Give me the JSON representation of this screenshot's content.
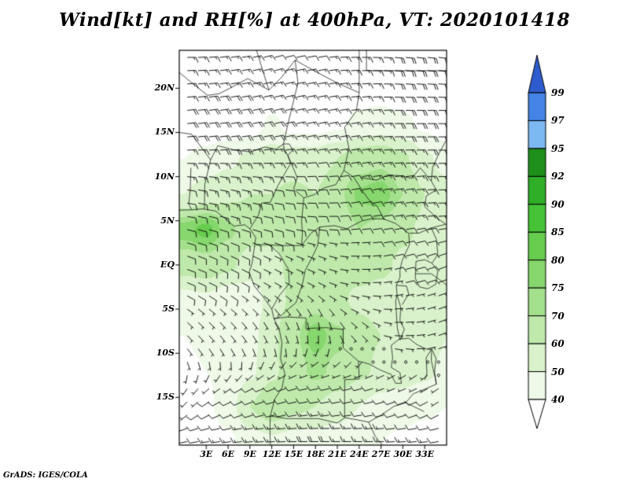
{
  "chart_data": {
    "type": "heatmap",
    "title": "Wind[kt] and RH[%] at 400hPa, VT: 2020101418",
    "attribution": "GrADS: IGES/COLA",
    "variable": "Relative humidity [%] shaded with wind barbs [kt]",
    "level": "400hPa",
    "valid_time": "2020101418",
    "legend_position": "right",
    "lon_range": [
      -0.7,
      36.0
    ],
    "lat_range": [
      -20.4,
      24.3
    ],
    "x_ticks": {
      "labels": [
        "3E",
        "6E",
        "9E",
        "12E",
        "15E",
        "18E",
        "21E",
        "24E",
        "27E",
        "30E",
        "33E"
      ],
      "lons": [
        3,
        6,
        9,
        12,
        15,
        18,
        21,
        24,
        27,
        30,
        33
      ]
    },
    "y_ticks": {
      "labels": [
        "20N",
        "15N",
        "10N",
        "5N",
        "EQ",
        "5S",
        "10S",
        "15S"
      ],
      "lats": [
        20,
        15,
        10,
        5,
        0,
        -5,
        -10,
        -15
      ]
    },
    "colorbar": {
      "levels": [
        40,
        50,
        60,
        70,
        75,
        80,
        85,
        90,
        92,
        95,
        97,
        99
      ],
      "colors": [
        "#ffffff",
        "#eef9e8",
        "#d9f2cb",
        "#bfe9ab",
        "#a3e08c",
        "#86d76d",
        "#67cd4f",
        "#46c236",
        "#2fae27",
        "#1f8f1b",
        "#7cb8f2",
        "#4584e6",
        "#2e5ccf"
      ]
    },
    "rh_field": {
      "units": "%",
      "lons": [
        0,
        3,
        6,
        9,
        12,
        15,
        18,
        21,
        24,
        27,
        30,
        33,
        36
      ],
      "lats": [
        24,
        20,
        16,
        12,
        8,
        4,
        0,
        -4,
        -8,
        -12,
        -16,
        -20
      ],
      "values": [
        [
          30,
          30,
          30,
          30,
          30,
          30,
          30,
          32,
          34,
          34,
          32,
          30,
          30
        ],
        [
          30,
          30,
          30,
          30,
          30,
          32,
          32,
          34,
          36,
          36,
          34,
          32,
          30
        ],
        [
          32,
          32,
          33,
          34,
          42,
          36,
          36,
          38,
          42,
          44,
          42,
          38,
          34
        ],
        [
          40,
          44,
          48,
          52,
          55,
          55,
          55,
          60,
          66,
          68,
          62,
          52,
          46
        ],
        [
          50,
          55,
          58,
          60,
          60,
          62,
          60,
          68,
          76,
          78,
          70,
          60,
          54
        ],
        [
          78,
          82,
          72,
          64,
          62,
          64,
          62,
          64,
          70,
          68,
          62,
          58,
          55
        ],
        [
          64,
          66,
          62,
          56,
          58,
          62,
          60,
          62,
          64,
          62,
          58,
          56,
          54
        ],
        [
          46,
          48,
          42,
          42,
          55,
          62,
          66,
          62,
          58,
          56,
          54,
          52,
          50
        ],
        [
          40,
          42,
          40,
          46,
          58,
          68,
          78,
          72,
          64,
          60,
          58,
          55,
          50
        ],
        [
          38,
          40,
          42,
          48,
          58,
          66,
          72,
          68,
          62,
          58,
          55,
          52,
          48
        ],
        [
          35,
          38,
          45,
          60,
          68,
          62,
          60,
          55,
          50,
          46,
          44,
          42,
          40
        ],
        [
          32,
          34,
          38,
          45,
          48,
          46,
          45,
          44,
          42,
          40,
          38,
          36,
          34
        ]
      ]
    },
    "wind_field": {
      "units": "kt",
      "lons": [
        0,
        6,
        12,
        18,
        24,
        30,
        36
      ],
      "lats": [
        24,
        16,
        8,
        0,
        -8,
        -16,
        -20
      ],
      "u": [
        [
          -15,
          -15,
          -12,
          -12,
          -15,
          -18,
          -18
        ],
        [
          -18,
          -20,
          -18,
          -15,
          -15,
          -18,
          -20
        ],
        [
          -12,
          -14,
          -12,
          -10,
          -12,
          -14,
          -15
        ],
        [
          -8,
          -8,
          -6,
          -5,
          -6,
          -8,
          -8
        ],
        [
          -5,
          -4,
          -2,
          0,
          -2,
          -4,
          -5
        ],
        [
          5,
          8,
          10,
          12,
          10,
          8,
          6
        ],
        [
          10,
          14,
          16,
          18,
          16,
          14,
          12
        ]
      ],
      "v": [
        [
          0,
          -2,
          -3,
          -2,
          0,
          2,
          2
        ],
        [
          -2,
          -3,
          -4,
          -3,
          -2,
          0,
          0
        ],
        [
          2,
          3,
          2,
          0,
          -2,
          -2,
          0
        ],
        [
          3,
          4,
          3,
          2,
          0,
          -2,
          -3
        ],
        [
          5,
          5,
          4,
          3,
          2,
          0,
          -2
        ],
        [
          5,
          4,
          3,
          2,
          2,
          3,
          4
        ],
        [
          2,
          2,
          1,
          0,
          0,
          1,
          2
        ]
      ]
    }
  }
}
